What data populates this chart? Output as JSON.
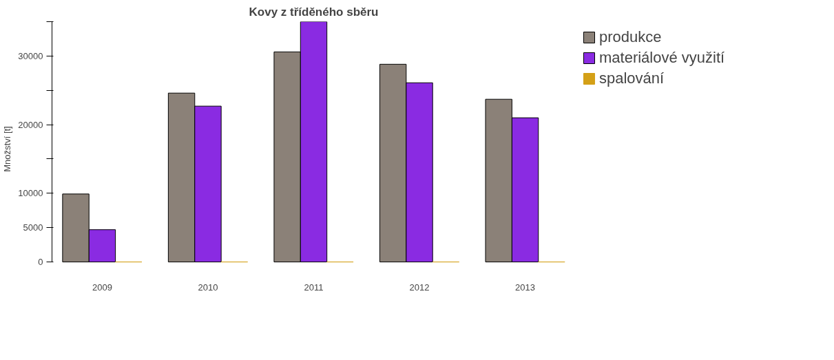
{
  "chart_data": {
    "type": "bar",
    "title": "Kovy z tříděného sběru",
    "ylabel": "Množství [t]",
    "categories": [
      "2009",
      "2010",
      "2011",
      "2012",
      "2013"
    ],
    "series": [
      {
        "name": "produkce",
        "color": "#8b8178",
        "values": [
          9900,
          24600,
          30600,
          28800,
          23700
        ]
      },
      {
        "name": "materiálové využití",
        "color": "#8a2be2",
        "values": [
          4700,
          22700,
          35000,
          26100,
          21000
        ]
      },
      {
        "name": "spalování",
        "color": "#d4a017",
        "values": [
          0,
          0,
          0,
          0,
          0
        ]
      }
    ],
    "ylim": [
      0,
      35000
    ],
    "yticks": [
      0,
      5000,
      10000,
      {
        "value": 15000,
        "label": null
      },
      20000,
      {
        "value": 25000,
        "label": null
      },
      30000,
      {
        "value": 35000,
        "label": null
      }
    ],
    "grid": false,
    "legend": "right"
  }
}
